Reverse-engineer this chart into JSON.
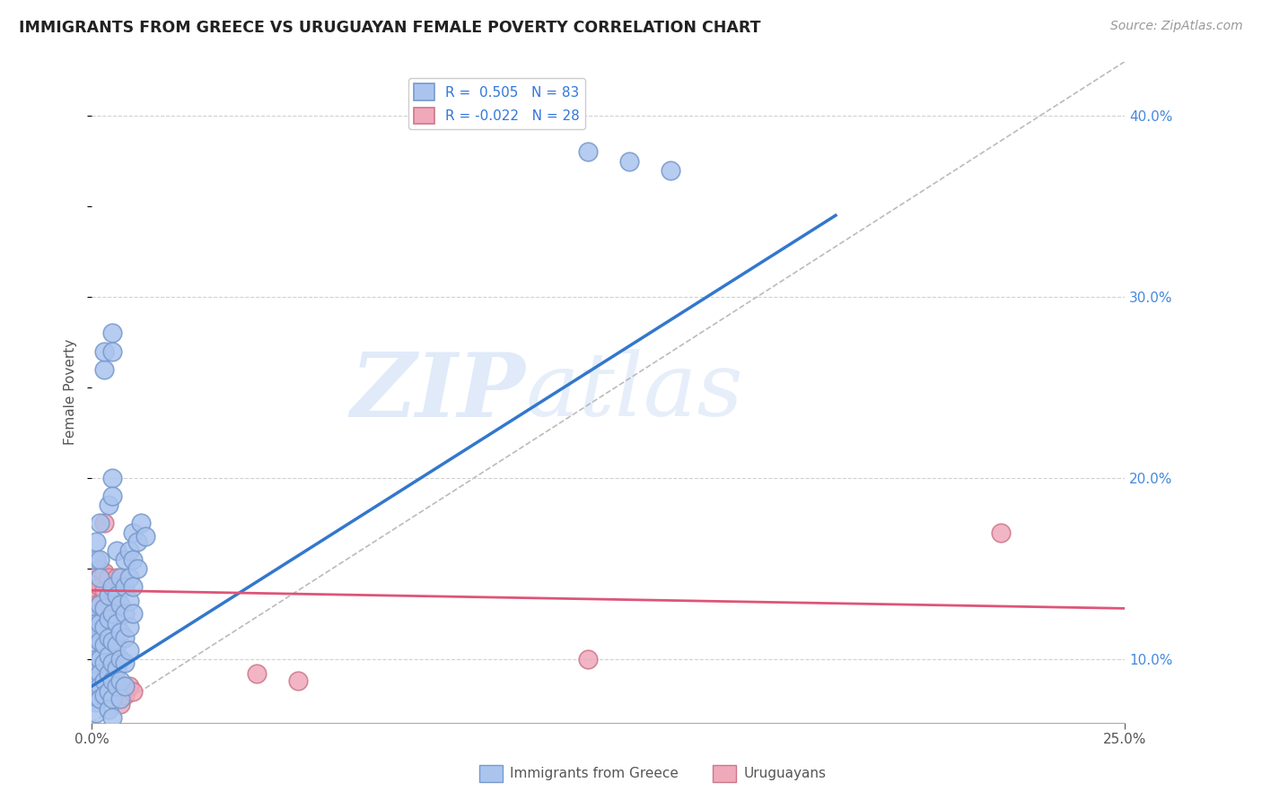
{
  "title": "IMMIGRANTS FROM GREECE VS URUGUAYAN FEMALE POVERTY CORRELATION CHART",
  "source": "Source: ZipAtlas.com",
  "ylabel": "Female Poverty",
  "xlim": [
    0.0,
    0.25
  ],
  "ylim": [
    0.065,
    0.43
  ],
  "y_ticks": [
    0.1,
    0.2,
    0.3,
    0.4
  ],
  "x_ticks": [
    0.0,
    0.25
  ],
  "watermark_zip": "ZIP",
  "watermark_atlas": "atlas",
  "blue_scatter": [
    [
      0.001,
      0.125
    ],
    [
      0.001,
      0.12
    ],
    [
      0.001,
      0.115
    ],
    [
      0.001,
      0.108
    ],
    [
      0.001,
      0.1
    ],
    [
      0.001,
      0.095
    ],
    [
      0.001,
      0.088
    ],
    [
      0.001,
      0.082
    ],
    [
      0.001,
      0.076
    ],
    [
      0.001,
      0.07
    ],
    [
      0.001,
      0.155
    ],
    [
      0.001,
      0.165
    ],
    [
      0.002,
      0.13
    ],
    [
      0.002,
      0.12
    ],
    [
      0.002,
      0.11
    ],
    [
      0.002,
      0.1
    ],
    [
      0.002,
      0.092
    ],
    [
      0.002,
      0.085
    ],
    [
      0.002,
      0.078
    ],
    [
      0.002,
      0.155
    ],
    [
      0.002,
      0.145
    ],
    [
      0.002,
      0.175
    ],
    [
      0.003,
      0.128
    ],
    [
      0.003,
      0.118
    ],
    [
      0.003,
      0.108
    ],
    [
      0.003,
      0.098
    ],
    [
      0.003,
      0.088
    ],
    [
      0.003,
      0.08
    ],
    [
      0.003,
      0.26
    ],
    [
      0.003,
      0.27
    ],
    [
      0.004,
      0.135
    ],
    [
      0.004,
      0.122
    ],
    [
      0.004,
      0.112
    ],
    [
      0.004,
      0.102
    ],
    [
      0.004,
      0.092
    ],
    [
      0.004,
      0.082
    ],
    [
      0.004,
      0.072
    ],
    [
      0.004,
      0.185
    ],
    [
      0.005,
      0.28
    ],
    [
      0.005,
      0.27
    ],
    [
      0.005,
      0.14
    ],
    [
      0.005,
      0.125
    ],
    [
      0.005,
      0.11
    ],
    [
      0.005,
      0.098
    ],
    [
      0.005,
      0.088
    ],
    [
      0.005,
      0.078
    ],
    [
      0.005,
      0.068
    ],
    [
      0.005,
      0.2
    ],
    [
      0.005,
      0.19
    ],
    [
      0.006,
      0.135
    ],
    [
      0.006,
      0.12
    ],
    [
      0.006,
      0.108
    ],
    [
      0.006,
      0.095
    ],
    [
      0.006,
      0.085
    ],
    [
      0.006,
      0.16
    ],
    [
      0.007,
      0.145
    ],
    [
      0.007,
      0.13
    ],
    [
      0.007,
      0.115
    ],
    [
      0.007,
      0.1
    ],
    [
      0.007,
      0.088
    ],
    [
      0.007,
      0.078
    ],
    [
      0.008,
      0.155
    ],
    [
      0.008,
      0.14
    ],
    [
      0.008,
      0.125
    ],
    [
      0.008,
      0.112
    ],
    [
      0.008,
      0.098
    ],
    [
      0.008,
      0.085
    ],
    [
      0.009,
      0.16
    ],
    [
      0.009,
      0.145
    ],
    [
      0.009,
      0.132
    ],
    [
      0.009,
      0.118
    ],
    [
      0.009,
      0.105
    ],
    [
      0.01,
      0.17
    ],
    [
      0.01,
      0.155
    ],
    [
      0.01,
      0.14
    ],
    [
      0.01,
      0.125
    ],
    [
      0.011,
      0.165
    ],
    [
      0.011,
      0.15
    ],
    [
      0.012,
      0.175
    ],
    [
      0.013,
      0.168
    ],
    [
      0.12,
      0.38
    ],
    [
      0.13,
      0.375
    ],
    [
      0.14,
      0.37
    ]
  ],
  "pink_scatter": [
    [
      0.001,
      0.145
    ],
    [
      0.001,
      0.135
    ],
    [
      0.001,
      0.13
    ],
    [
      0.001,
      0.12
    ],
    [
      0.001,
      0.115
    ],
    [
      0.001,
      0.145
    ],
    [
      0.002,
      0.15
    ],
    [
      0.002,
      0.14
    ],
    [
      0.002,
      0.13
    ],
    [
      0.002,
      0.12
    ],
    [
      0.003,
      0.148
    ],
    [
      0.003,
      0.138
    ],
    [
      0.003,
      0.128
    ],
    [
      0.003,
      0.175
    ],
    [
      0.004,
      0.145
    ],
    [
      0.004,
      0.135
    ],
    [
      0.005,
      0.14
    ],
    [
      0.005,
      0.132
    ],
    [
      0.006,
      0.145
    ],
    [
      0.006,
      0.088
    ],
    [
      0.007,
      0.075
    ],
    [
      0.008,
      0.08
    ],
    [
      0.009,
      0.085
    ],
    [
      0.01,
      0.082
    ],
    [
      0.04,
      0.092
    ],
    [
      0.05,
      0.088
    ],
    [
      0.12,
      0.1
    ],
    [
      0.22,
      0.17
    ]
  ],
  "blue_line_x": [
    0.0,
    0.18
  ],
  "blue_line_y": [
    0.085,
    0.345
  ],
  "pink_line_x": [
    0.0,
    0.25
  ],
  "pink_line_y": [
    0.138,
    0.128
  ],
  "dash_line_x": [
    0.0,
    0.25
  ],
  "dash_line_y": [
    0.065,
    0.43
  ],
  "blue_line_color": "#3377cc",
  "pink_line_color": "#dd5577",
  "blue_dot_facecolor": "#aac4ee",
  "blue_dot_edgecolor": "#7799cc",
  "pink_dot_facecolor": "#f0a8bb",
  "pink_dot_edgecolor": "#cc7788",
  "grid_color": "#cccccc",
  "bg_color": "#ffffff",
  "dash_color": "#aaaaaa",
  "title_color": "#222222",
  "source_color": "#999999",
  "ylabel_color": "#555555",
  "tick_color": "#555555",
  "right_tick_color": "#4488dd",
  "legend_text_color": "#3377dd"
}
